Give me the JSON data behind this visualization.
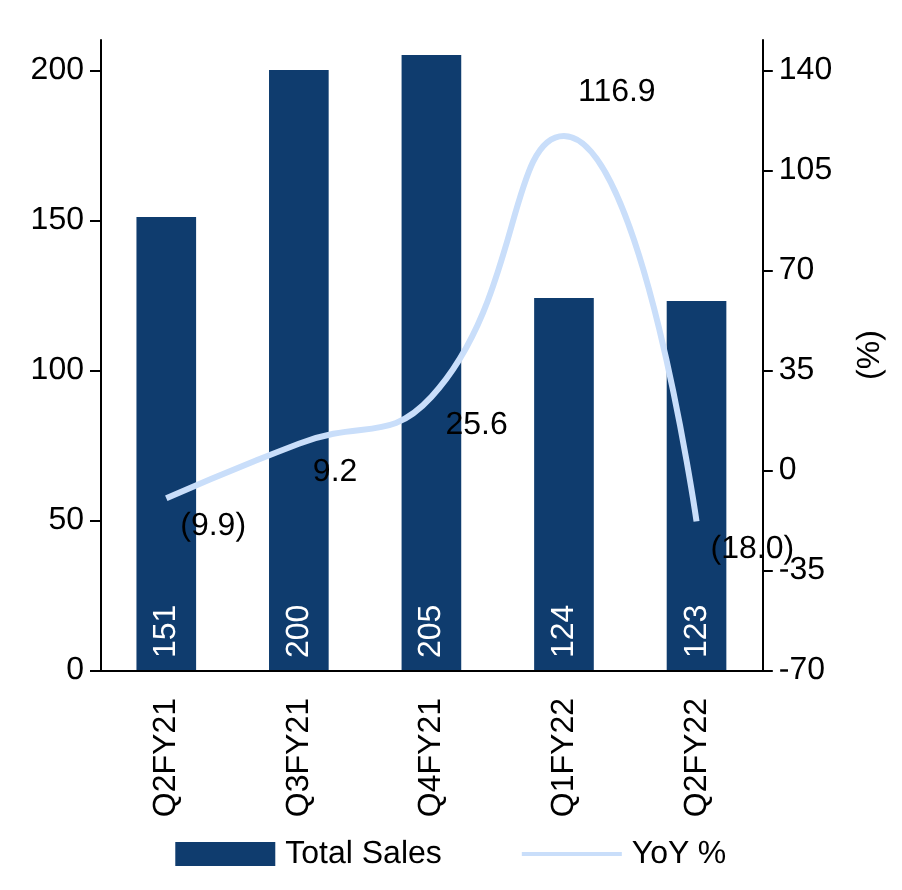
{
  "chart_data": {
    "type": "bar",
    "categories": [
      "Q2FY21",
      "Q3FY21",
      "Q4FY21",
      "Q1FY22",
      "Q2FY22"
    ],
    "series": [
      {
        "name": "Total Sales",
        "color": "#0f3c6e",
        "values": [
          151,
          200,
          205,
          124,
          123
        ]
      },
      {
        "name": "YoY %",
        "type": "line",
        "axis": "y2",
        "color": "#c9defa",
        "values": [
          -9.9,
          9.2,
          25.6,
          116.9,
          -18.0
        ],
        "value_labels": [
          "(9.9)",
          "9.2",
          "25.6",
          "116.9",
          "(18.0)"
        ]
      }
    ],
    "data_labels": true,
    "y2label": "(%)",
    "ylim": [
      0,
      210
    ],
    "yticks": [
      0,
      50,
      100,
      150,
      200
    ],
    "y2lim": [
      -70,
      150.5
    ],
    "y2ticks": [
      {
        "value": -70,
        "label": "-70"
      },
      {
        "value": -35,
        "label": "-35"
      },
      {
        "value": 0,
        "label": "0"
      },
      {
        "value": 35,
        "label": "35"
      },
      {
        "value": 70,
        "label": "70"
      },
      {
        "value": 105,
        "label": "105"
      },
      {
        "value": 140,
        "label": "140"
      }
    ],
    "grid": false,
    "legend": "bottom",
    "marker": "none"
  }
}
